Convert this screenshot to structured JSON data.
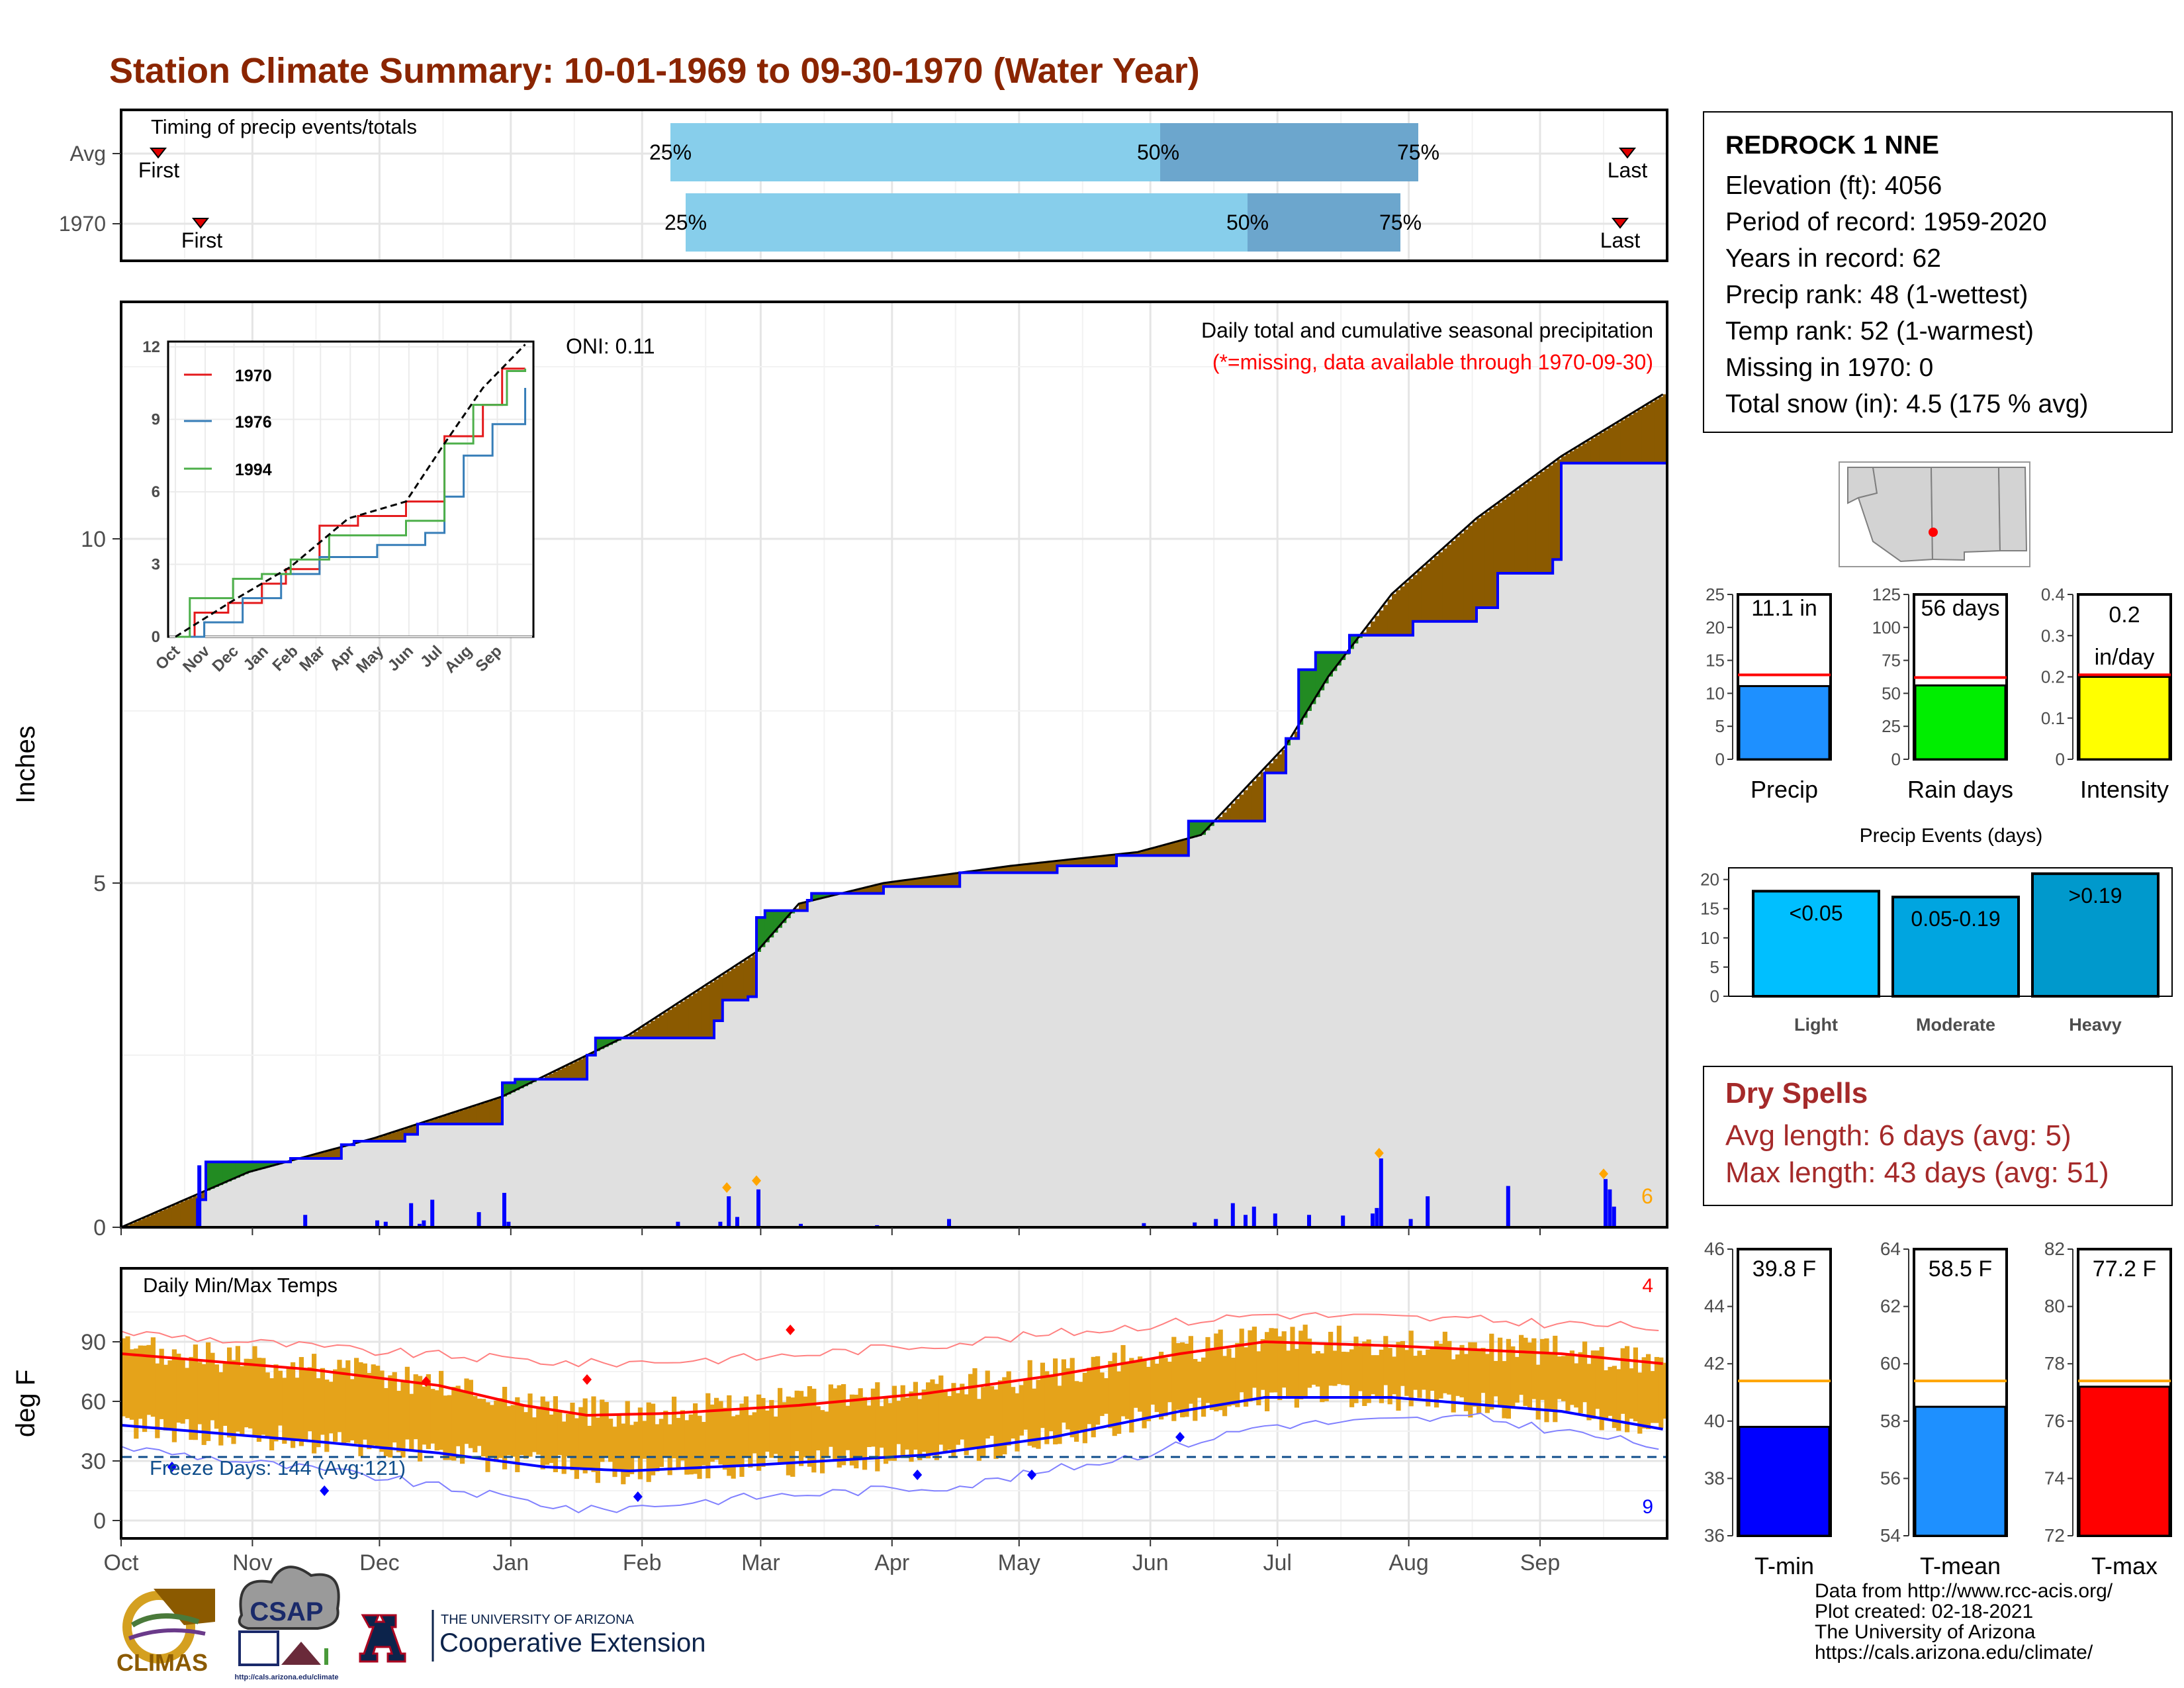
{
  "title": "Station Climate Summary: 10-01-1969 to 09-30-1970 (Water Year)",
  "timing": {
    "label": "Timing of precip events/totals",
    "rows": [
      {
        "name": "Avg",
        "first": "First",
        "last": "Last",
        "p25": "25%",
        "p50": "50%",
        "p75": "75%"
      },
      {
        "name": "1970",
        "first": "First",
        "last": "Last",
        "p25": "25%",
        "p50": "50%",
        "p75": "75%"
      }
    ]
  },
  "station": {
    "name": "REDROCK 1 NNE",
    "elevation": "Elevation (ft): 4056",
    "period": "Period of record: 1959-2020",
    "years": "Years in record: 62",
    "precip_rank": "Precip rank: 48 (1-wettest)",
    "temp_rank": "Temp rank: 52 (1-warmest)",
    "missing": "Missing in 1970: 0",
    "snow": "Total snow (in): 4.5 (175 % avg)"
  },
  "precip_panel": {
    "y_title": "Inches",
    "oni": "ONI: 0.11",
    "note1": "Daily total and cumulative seasonal precipitation",
    "note2": "(*=missing, data available through 1970-09-30)",
    "extreme_count": "6"
  },
  "inset": {
    "legend": [
      "1970",
      "1976",
      "1994"
    ]
  },
  "temp_panel": {
    "y_title": "deg F",
    "label": "Daily Min/Max Temps",
    "freeze": "Freeze Days: 144 (Avg:121)",
    "hot_count": "4",
    "cold_count": "9"
  },
  "mini_bars": {
    "precip": {
      "label": "Precip",
      "value_text": "11.1 in"
    },
    "raindays": {
      "label": "Rain days",
      "value_text": "56 days"
    },
    "intensity": {
      "label": "Intensity",
      "value_text1": "0.2",
      "value_text2": "in/day"
    }
  },
  "events": {
    "title": "Precip Events (days)",
    "bars": [
      {
        "label": "Light",
        "text": "<0.05"
      },
      {
        "label": "Moderate",
        "text": "0.05-0.19"
      },
      {
        "label": "Heavy",
        "text": ">0.19"
      }
    ]
  },
  "dry_spells": {
    "title": "Dry Spells",
    "avg": "Avg length: 6 days (avg: 5)",
    "max": "Max length: 43 days (avg: 51)"
  },
  "temp_bars": {
    "tmin": {
      "label": "T-min",
      "value_text": "39.8 F"
    },
    "tmean": {
      "label": "T-mean",
      "value_text": "58.5 F"
    },
    "tmax": {
      "label": "T-max",
      "value_text": "77.2 F"
    }
  },
  "footer": {
    "line1": "Data from http://www.rcc-acis.org/",
    "line2": "Plot created: 02-18-2021",
    "line3": "The University of Arizona",
    "line4": "https://cals.arizona.edu/climate/"
  },
  "logos": {
    "climas": "CLIMAS",
    "csap": "CSAP",
    "csap_url": "http://cals.arizona.edu/climate",
    "ua_small": "THE UNIVERSITY OF ARIZONA",
    "ua_big": "Cooperative Extension"
  },
  "colors": {
    "title": "#8b2500",
    "above_avg": "#8b5a00",
    "below_avg": "#228b22",
    "daily_precip": "#0000ff",
    "max_temp": "#ff0000",
    "min_temp": "#0000ff",
    "temp_bar": "#e5a31a"
  },
  "chart_data": [
    {
      "type": "area",
      "name": "cumulative precipitation",
      "ylabel": "Inches",
      "x_ticks": [
        "Oct",
        "Nov",
        "Dec",
        "Jan",
        "Feb",
        "Mar",
        "Apr",
        "May",
        "Jun",
        "Jul",
        "Aug",
        "Sep"
      ],
      "y_ticks": [
        0,
        5,
        10
      ],
      "ylim": [
        0,
        13.5
      ],
      "series": [
        {
          "name": "1970",
          "points": [
            [
              0,
              0
            ],
            [
              18,
              0.4
            ],
            [
              20,
              0.95
            ],
            [
              40,
              1.0
            ],
            [
              52,
              1.2
            ],
            [
              55,
              1.25
            ],
            [
              67,
              1.35
            ],
            [
              70,
              1.5
            ],
            [
              90,
              2.1
            ],
            [
              93,
              2.15
            ],
            [
              110,
              2.5
            ],
            [
              112,
              2.75
            ],
            [
              140,
              3.0
            ],
            [
              142,
              3.3
            ],
            [
              148,
              3.35
            ],
            [
              150,
              4.5
            ],
            [
              152,
              4.6
            ],
            [
              162,
              4.75
            ],
            [
              163,
              4.85
            ],
            [
              180,
              4.95
            ],
            [
              198,
              5.15
            ],
            [
              221,
              5.25
            ],
            [
              235,
              5.4
            ],
            [
              252,
              5.9
            ],
            [
              270,
              6.6
            ],
            [
              275,
              7.1
            ],
            [
              278,
              8.1
            ],
            [
              282,
              8.35
            ],
            [
              290,
              8.6
            ],
            [
              305,
              8.8
            ],
            [
              320,
              9.0
            ],
            [
              325,
              9.5
            ],
            [
              338,
              9.7
            ],
            [
              340,
              11.1
            ],
            [
              364,
              11.1
            ]
          ]
        },
        {
          "name": "Average",
          "points": [
            [
              0,
              0
            ],
            [
              30,
              0.8
            ],
            [
              60,
              1.3
            ],
            [
              90,
              1.9
            ],
            [
              110,
              2.5
            ],
            [
              120,
              2.8
            ],
            [
              150,
              4.0
            ],
            [
              160,
              4.7
            ],
            [
              180,
              5.0
            ],
            [
              210,
              5.25
            ],
            [
              240,
              5.45
            ],
            [
              255,
              5.7
            ],
            [
              275,
              7.0
            ],
            [
              285,
              8.0
            ],
            [
              300,
              9.2
            ],
            [
              320,
              10.3
            ],
            [
              340,
              11.2
            ],
            [
              364,
              12.1
            ]
          ]
        }
      ],
      "daily": [
        [
          18,
          0.9
        ],
        [
          43,
          0.18
        ],
        [
          60,
          0.1
        ],
        [
          62,
          0.08
        ],
        [
          68,
          0.35
        ],
        [
          70,
          0.05
        ],
        [
          71,
          0.1
        ],
        [
          73,
          0.4
        ],
        [
          84,
          0.22
        ],
        [
          90,
          0.5
        ],
        [
          91,
          0.08
        ],
        [
          131,
          0.08
        ],
        [
          141,
          0.08
        ],
        [
          143,
          0.45
        ],
        [
          145,
          0.15
        ],
        [
          150,
          0.55
        ],
        [
          160,
          0.05
        ],
        [
          178,
          0.03
        ],
        [
          195,
          0.12
        ],
        [
          241,
          0.06
        ],
        [
          253,
          0.07
        ],
        [
          258,
          0.12
        ],
        [
          262,
          0.35
        ],
        [
          265,
          0.18
        ],
        [
          267,
          0.3
        ],
        [
          272,
          0.2
        ],
        [
          280,
          0.18
        ],
        [
          288,
          0.17
        ],
        [
          295,
          0.2
        ],
        [
          296,
          0.28
        ],
        [
          297,
          1.0
        ],
        [
          304,
          0.12
        ],
        [
          308,
          0.45
        ],
        [
          327,
          0.6
        ],
        [
          350,
          0.7
        ],
        [
          351,
          0.55
        ],
        [
          352,
          0.3
        ]
      ]
    },
    {
      "type": "line",
      "name": "inset cumulative precipitation",
      "x_ticks": [
        "Oct",
        "Nov",
        "Dec",
        "Jan",
        "Feb",
        "Mar",
        "Apr",
        "May",
        "Jun",
        "Jul",
        "Aug",
        "Sep"
      ],
      "y_ticks": [
        0,
        3,
        6,
        9,
        12
      ],
      "series": [
        {
          "name": "1970",
          "points": [
            [
              0,
              0
            ],
            [
              20,
              1.0
            ],
            [
              55,
              1.4
            ],
            [
              90,
              2.2
            ],
            [
              115,
              2.8
            ],
            [
              150,
              4.6
            ],
            [
              190,
              5.0
            ],
            [
              240,
              5.6
            ],
            [
              280,
              8.3
            ],
            [
              320,
              9.6
            ],
            [
              340,
              11.1
            ],
            [
              364,
              11.1
            ]
          ]
        },
        {
          "name": "1976",
          "points": [
            [
              0,
              0
            ],
            [
              30,
              0.6
            ],
            [
              70,
              1.6
            ],
            [
              110,
              2.6
            ],
            [
              150,
              3.3
            ],
            [
              210,
              3.8
            ],
            [
              260,
              4.3
            ],
            [
              280,
              5.8
            ],
            [
              300,
              7.5
            ],
            [
              330,
              8.8
            ],
            [
              364,
              10.3
            ]
          ]
        },
        {
          "name": "1994",
          "points": [
            [
              0,
              0
            ],
            [
              15,
              1.6
            ],
            [
              60,
              2.4
            ],
            [
              90,
              2.6
            ],
            [
              120,
              3.2
            ],
            [
              160,
              4.2
            ],
            [
              200,
              4.2
            ],
            [
              240,
              4.8
            ],
            [
              280,
              8.0
            ],
            [
              310,
              9.6
            ],
            [
              345,
              11.0
            ],
            [
              364,
              11.1
            ]
          ]
        },
        {
          "name": "Average",
          "points": [
            [
              0,
              0
            ],
            [
              60,
              1.5
            ],
            [
              120,
              2.9
            ],
            [
              180,
              4.9
            ],
            [
              240,
              5.6
            ],
            [
              280,
              8.0
            ],
            [
              320,
              10.3
            ],
            [
              364,
              12.1
            ]
          ]
        }
      ]
    },
    {
      "type": "line",
      "name": "daily temperatures",
      "ylabel": "deg F",
      "y_ticks": [
        0,
        30,
        60,
        90
      ],
      "series": [
        {
          "name": "Avg max",
          "points": [
            [
              0,
              84
            ],
            [
              45,
              76
            ],
            [
              75,
              68
            ],
            [
              95,
              58
            ],
            [
              110,
              53
            ],
            [
              130,
              54
            ],
            [
              160,
              58
            ],
            [
              190,
              64
            ],
            [
              220,
              73
            ],
            [
              250,
              84
            ],
            [
              270,
              90
            ],
            [
              300,
              88
            ],
            [
              340,
              84
            ],
            [
              364,
              79
            ]
          ]
        },
        {
          "name": "Avg min",
          "points": [
            [
              0,
              48
            ],
            [
              45,
              40
            ],
            [
              75,
              34
            ],
            [
              100,
              27
            ],
            [
              120,
              25
            ],
            [
              150,
              28
            ],
            [
              190,
              33
            ],
            [
              220,
              42
            ],
            [
              250,
              55
            ],
            [
              270,
              62
            ],
            [
              300,
              62
            ],
            [
              340,
              55
            ],
            [
              364,
              46
            ]
          ]
        },
        {
          "name": "Record max",
          "points": [
            [
              0,
              95
            ],
            [
              60,
              85
            ],
            [
              110,
              79
            ],
            [
              150,
              82
            ],
            [
              200,
              90
            ],
            [
              240,
              98
            ],
            [
              270,
              104
            ],
            [
              320,
              101
            ],
            [
              364,
              97
            ]
          ]
        },
        {
          "name": "Record min",
          "points": [
            [
              0,
              37
            ],
            [
              60,
              22
            ],
            [
              110,
              5
            ],
            [
              150,
              12
            ],
            [
              200,
              18
            ],
            [
              240,
              33
            ],
            [
              270,
              48
            ],
            [
              320,
              52
            ],
            [
              364,
              37
            ]
          ]
        }
      ]
    },
    {
      "type": "bar",
      "name": "summary bars",
      "series": [
        {
          "name": "Precip (in)",
          "value": 11.1,
          "avg": 12.8,
          "ylim": [
            0,
            25
          ]
        },
        {
          "name": "Rain days",
          "value": 56,
          "avg": 62,
          "ylim": [
            0,
            125
          ]
        },
        {
          "name": "Intensity (in/day)",
          "value": 0.2,
          "avg": 0.205,
          "ylim": [
            0,
            0.4
          ]
        },
        {
          "name": "Light",
          "value": 18
        },
        {
          "name": "Moderate",
          "value": 17
        },
        {
          "name": "Heavy",
          "value": 21
        },
        {
          "name": "T-min",
          "value": 39.8,
          "avg": 41.4,
          "ylim": [
            36,
            46
          ]
        },
        {
          "name": "T-mean",
          "value": 58.5,
          "avg": 59.4,
          "ylim": [
            54,
            64
          ]
        },
        {
          "name": "T-max",
          "value": 77.2,
          "avg": 77.4,
          "ylim": [
            72,
            82
          ]
        }
      ]
    }
  ]
}
